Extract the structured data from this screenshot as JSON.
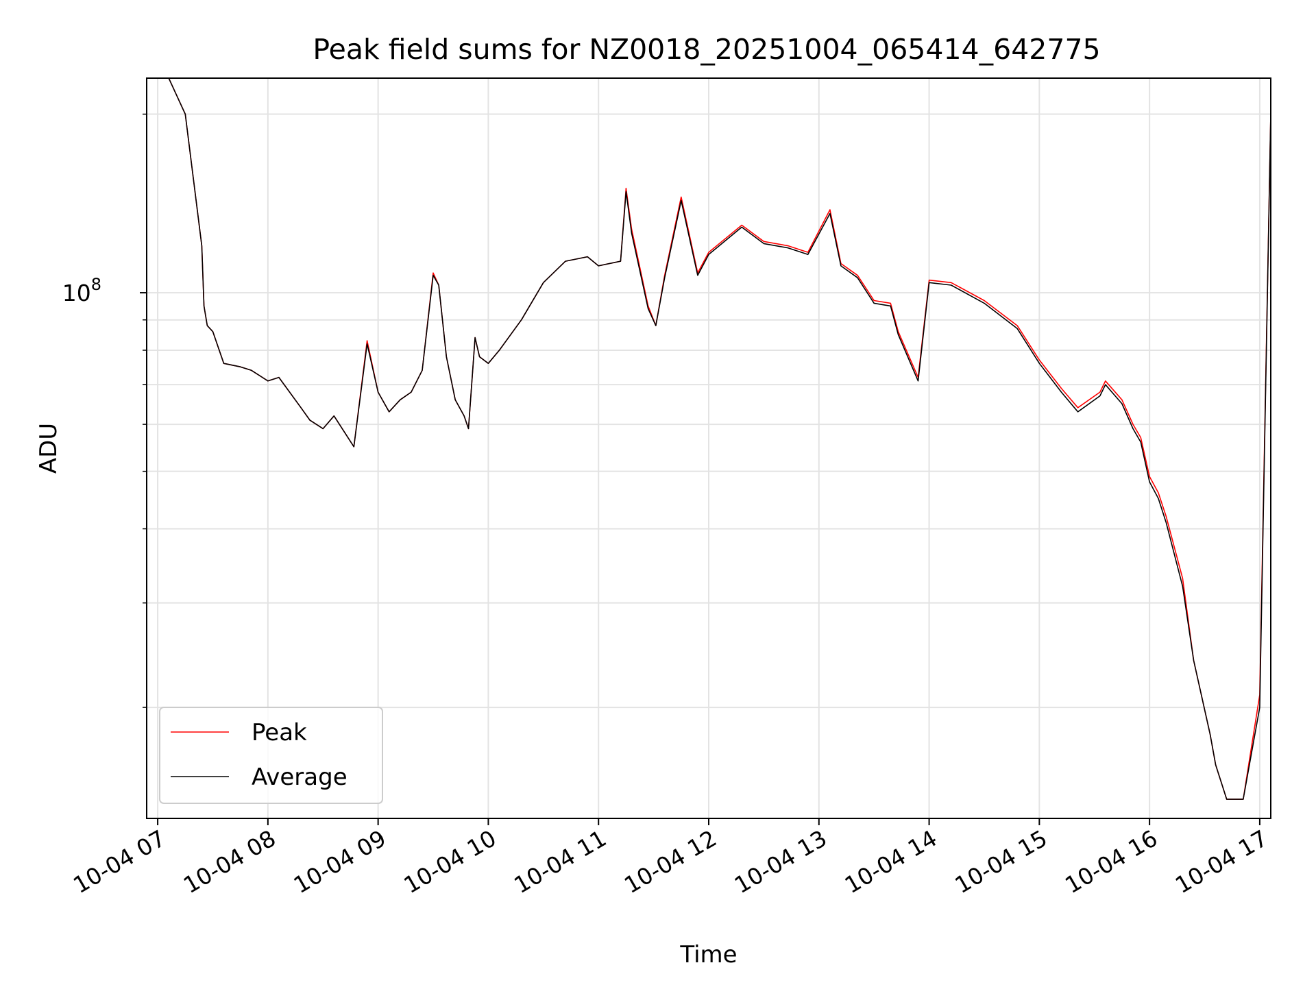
{
  "chart_data": {
    "type": "line",
    "title": "Peak field sums for NZ0018_20251004_065414_642775",
    "xlabel": "Time",
    "ylabel": "ADU",
    "y_scale": "log",
    "ylim": [
      13000000,
      230000000
    ],
    "xlim_hours": [
      6.9,
      17.1
    ],
    "x_tick_hours": [
      7,
      8,
      9,
      10,
      11,
      12,
      13,
      14,
      15,
      16,
      17
    ],
    "x_tick_labels": [
      "10-04 07",
      "10-04 08",
      "10-04 09",
      "10-04 10",
      "10-04 11",
      "10-04 12",
      "10-04 13",
      "10-04 14",
      "10-04 15",
      "10-04 16",
      "10-04 17"
    ],
    "y_major_ticks": [
      {
        "value": 100000000,
        "base": "10",
        "exponent": "8"
      }
    ],
    "y_minor_ticks": [
      20000000,
      30000000,
      40000000,
      50000000,
      60000000,
      70000000,
      80000000,
      90000000,
      200000000
    ],
    "grid": true,
    "legend": {
      "position": "lower-left",
      "entries": [
        {
          "label": "Peak",
          "color": "#ff0000"
        },
        {
          "label": "Average",
          "color": "#000000"
        }
      ]
    },
    "series": [
      {
        "name": "Peak",
        "color": "#ff0000",
        "x_hours": [
          6.95,
          7.1,
          7.25,
          7.4,
          7.42,
          7.45,
          7.5,
          7.6,
          7.75,
          7.85,
          8.0,
          8.1,
          8.3,
          8.38,
          8.5,
          8.6,
          8.78,
          8.9,
          9.0,
          9.1,
          9.2,
          9.3,
          9.4,
          9.5,
          9.55,
          9.62,
          9.7,
          9.78,
          9.82,
          9.88,
          9.92,
          10.0,
          10.1,
          10.3,
          10.5,
          10.7,
          10.9,
          11.0,
          11.2,
          11.25,
          11.3,
          11.45,
          11.52,
          11.6,
          11.75,
          11.9,
          12.0,
          12.3,
          12.5,
          12.72,
          12.9,
          13.1,
          13.2,
          13.35,
          13.5,
          13.65,
          13.72,
          13.9,
          14.0,
          14.2,
          14.5,
          14.8,
          15.0,
          15.2,
          15.35,
          15.55,
          15.6,
          15.75,
          15.85,
          15.92,
          16.0,
          16.08,
          16.15,
          16.3,
          16.4,
          16.55,
          16.6,
          16.7,
          16.85,
          17.0,
          17.1
        ],
        "values_millions": [
          230,
          230,
          200,
          120,
          95,
          88,
          86,
          76,
          75,
          74,
          71,
          72,
          64,
          61,
          59,
          62,
          55,
          83,
          68,
          63,
          66,
          68,
          74,
          108,
          103,
          78,
          66,
          62,
          59,
          84,
          78,
          76,
          80,
          90,
          104,
          113,
          115,
          111,
          113,
          150,
          128,
          95,
          88,
          107,
          145,
          108,
          117,
          130,
          122,
          120,
          117,
          138,
          112,
          107,
          97,
          96,
          86,
          72,
          105,
          104,
          97,
          88,
          77,
          69,
          64,
          68,
          71,
          66,
          60,
          57,
          49,
          46,
          42,
          33,
          24,
          18,
          16,
          14,
          14,
          21,
          200
        ]
      },
      {
        "name": "Average",
        "color": "#000000",
        "x_hours": [
          6.95,
          7.1,
          7.25,
          7.4,
          7.42,
          7.45,
          7.5,
          7.6,
          7.75,
          7.85,
          8.0,
          8.1,
          8.3,
          8.38,
          8.5,
          8.6,
          8.78,
          8.9,
          9.0,
          9.1,
          9.2,
          9.3,
          9.4,
          9.5,
          9.55,
          9.62,
          9.7,
          9.78,
          9.82,
          9.88,
          9.92,
          10.0,
          10.1,
          10.3,
          10.5,
          10.7,
          10.9,
          11.0,
          11.2,
          11.25,
          11.3,
          11.45,
          11.52,
          11.6,
          11.75,
          11.9,
          12.0,
          12.3,
          12.5,
          12.72,
          12.9,
          13.1,
          13.2,
          13.35,
          13.5,
          13.65,
          13.72,
          13.9,
          14.0,
          14.2,
          14.5,
          14.8,
          15.0,
          15.2,
          15.35,
          15.55,
          15.6,
          15.75,
          15.85,
          15.92,
          16.0,
          16.08,
          16.15,
          16.3,
          16.4,
          16.55,
          16.6,
          16.7,
          16.85,
          17.0,
          17.1
        ],
        "values_millions": [
          230,
          230,
          200,
          120,
          95,
          88,
          86,
          76,
          75,
          74,
          71,
          72,
          64,
          61,
          59,
          62,
          55,
          82,
          68,
          63,
          66,
          68,
          74,
          107,
          103,
          78,
          66,
          62,
          59,
          84,
          78,
          76,
          80,
          90,
          104,
          113,
          115,
          111,
          113,
          148,
          126,
          94,
          88,
          106,
          143,
          107,
          116,
          129,
          121,
          119,
          116,
          136,
          111,
          106,
          96,
          95,
          85,
          71,
          104,
          103,
          96,
          87,
          76,
          68,
          63,
          67,
          70,
          65,
          59,
          56,
          48,
          45,
          41,
          32,
          24,
          18,
          16,
          14,
          14,
          20,
          200
        ]
      }
    ]
  }
}
